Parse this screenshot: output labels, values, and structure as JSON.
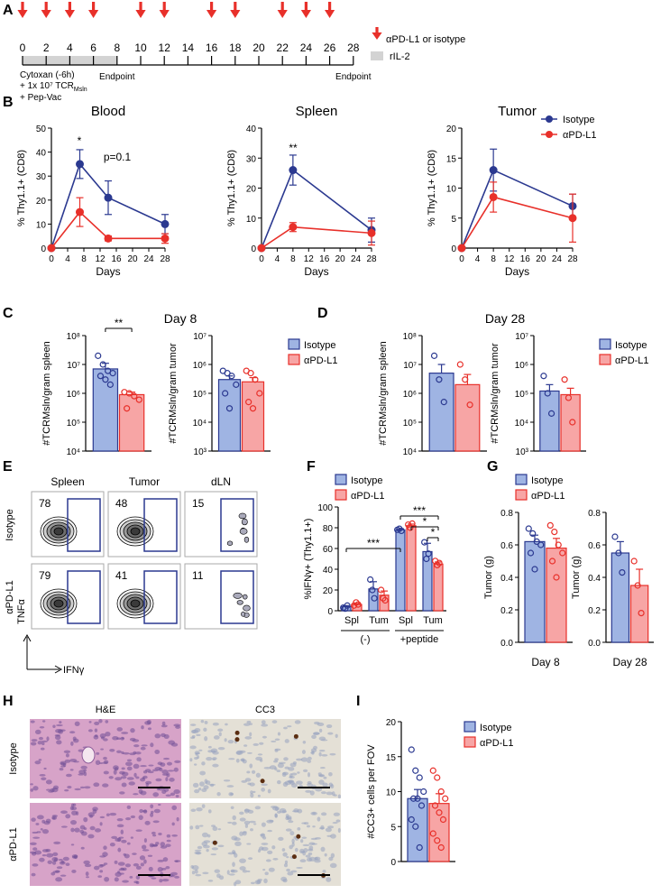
{
  "panel_labels": [
    "A",
    "B",
    "C",
    "D",
    "E",
    "F",
    "G",
    "H",
    "I"
  ],
  "timeline": {
    "ticks": [
      0,
      2,
      4,
      6,
      8,
      10,
      12,
      14,
      16,
      18,
      20,
      22,
      24,
      26,
      28
    ],
    "injections": [
      0,
      2,
      4,
      6,
      10,
      12,
      16,
      18,
      22,
      24,
      26
    ],
    "ril2": [
      0,
      8
    ],
    "endpoints": [
      8,
      28
    ],
    "endpoint_label": "Endpoint",
    "notes": [
      "Cytoxan (-6h)",
      "+ 1x 10⁷ TCR",
      "+ Pep-Vac"
    ],
    "note_subscript": "Msln",
    "legend": [
      "αPD-L1 or isotype",
      "rIL-2"
    ]
  },
  "panel_titles": [
    "Day 8",
    "Day 28"
  ],
  "chart_data": [
    {
      "type": "line",
      "title": "Blood",
      "x_label": "Days",
      "y_label": "% Thy1.1+ (CD8)",
      "x": [
        0,
        7,
        14,
        28
      ],
      "xlim": [
        0,
        28
      ],
      "xticks": [
        0,
        4,
        8,
        12,
        16,
        20,
        24,
        28
      ],
      "ylim": [
        0,
        50
      ],
      "yticks": [
        0,
        10,
        20,
        30,
        40,
        50
      ],
      "series": [
        {
          "name": "Isotype",
          "color": "#2b3990",
          "values": [
            0,
            35,
            21,
            10
          ],
          "errors": [
            0,
            6,
            7,
            4
          ]
        },
        {
          "name": "αPD-L1",
          "color": "#e8302a",
          "values": [
            0,
            15,
            4,
            4
          ],
          "errors": [
            0,
            6,
            1,
            2
          ]
        }
      ],
      "annotations": [
        "*",
        "p=0.1"
      ]
    },
    {
      "type": "line",
      "title": "Spleen",
      "x_label": "Days",
      "y_label": "% Thy1.1+ (CD8)",
      "x": [
        0,
        8,
        28
      ],
      "xlim": [
        0,
        28
      ],
      "xticks": [
        0,
        4,
        8,
        12,
        16,
        20,
        24,
        28
      ],
      "ylim": [
        0,
        40
      ],
      "yticks": [
        0,
        10,
        20,
        30,
        40
      ],
      "series": [
        {
          "name": "Isotype",
          "color": "#2b3990",
          "values": [
            0,
            26,
            6
          ],
          "errors": [
            0,
            5,
            4
          ]
        },
        {
          "name": "αPD-L1",
          "color": "#e8302a",
          "values": [
            0,
            7,
            5
          ],
          "errors": [
            0,
            1.5,
            4
          ]
        }
      ],
      "annotations": [
        "**"
      ]
    },
    {
      "type": "line",
      "title": "Tumor",
      "x_label": "Days",
      "y_label": "% Thy1.1+ (CD8)",
      "x": [
        0,
        8,
        28
      ],
      "xlim": [
        0,
        28
      ],
      "xticks": [
        0,
        4,
        8,
        12,
        16,
        20,
        24,
        28
      ],
      "ylim": [
        0,
        20
      ],
      "yticks": [
        0,
        5,
        10,
        15,
        20
      ],
      "series": [
        {
          "name": "Isotype",
          "color": "#2b3990",
          "values": [
            0,
            13,
            7
          ],
          "errors": [
            0,
            3.5,
            2
          ]
        },
        {
          "name": "αPD-L1",
          "color": "#e8302a",
          "values": [
            0,
            8.5,
            5
          ],
          "errors": [
            0,
            2.5,
            4
          ]
        }
      ],
      "legend": "upper right"
    },
    {
      "type": "bar",
      "log_scale": true,
      "y_label": "#TCRMsln/gram spleen",
      "ylim": [
        10000,
        100000000
      ],
      "yticks": [
        {
          "value": 10000,
          "label": "10⁴"
        },
        {
          "value": 100000,
          "label": "10⁵"
        },
        {
          "value": 1000000,
          "label": "10⁶"
        },
        {
          "value": 10000000,
          "label": "10⁷"
        },
        {
          "value": 100000000,
          "label": "10⁸"
        }
      ],
      "series": [
        {
          "name": "Isotype",
          "color": "#9fb4e3",
          "edge": "#2b3990",
          "values": [
            7000000
          ],
          "errors": [
            4000000
          ],
          "points": [
            [
              20000000,
              10000000,
              6000000,
              5000000,
              4000000,
              3000000,
              2000000
            ]
          ]
        },
        {
          "name": "αPD-L1",
          "color": "#f7a5a5",
          "edge": "#e8302a",
          "values": [
            900000
          ],
          "errors": [
            200000
          ],
          "points": [
            [
              1100000,
              1000000,
              800000,
              600000,
              300000
            ]
          ]
        }
      ],
      "annotations": [
        "**"
      ]
    },
    {
      "type": "bar",
      "log_scale": true,
      "y_label": "#TCRMsln/gram tumor",
      "ylim": [
        1000,
        10000000
      ],
      "yticks": [
        {
          "value": 1000,
          "label": "10³"
        },
        {
          "value": 10000,
          "label": "10⁴"
        },
        {
          "value": 100000,
          "label": "10⁵"
        },
        {
          "value": 1000000,
          "label": "10⁶"
        },
        {
          "value": 10000000,
          "label": "10⁷"
        }
      ],
      "series": [
        {
          "name": "Isotype",
          "color": "#9fb4e3",
          "edge": "#2b3990",
          "values": [
            300000
          ],
          "errors": [
            100000
          ],
          "points": [
            [
              600000,
              500000,
              400000,
              200000,
              100000,
              30000
            ]
          ]
        },
        {
          "name": "αPD-L1",
          "color": "#f7a5a5",
          "edge": "#e8302a",
          "values": [
            250000
          ],
          "errors": [
            100000
          ],
          "points": [
            [
              600000,
              500000,
              300000,
              100000,
              50000,
              30000
            ]
          ]
        }
      ],
      "legend": "right"
    },
    {
      "type": "bar",
      "log_scale": true,
      "y_label": "#TCRMsln/gram spleen",
      "ylim": [
        10000,
        100000000
      ],
      "yticks": [
        {
          "value": 10000,
          "label": "10⁴"
        },
        {
          "value": 100000,
          "label": "10⁵"
        },
        {
          "value": 1000000,
          "label": "10⁶"
        },
        {
          "value": 10000000,
          "label": "10⁷"
        },
        {
          "value": 100000000,
          "label": "10⁸"
        }
      ],
      "series": [
        {
          "name": "Isotype",
          "color": "#9fb4e3",
          "edge": "#2b3990",
          "values": [
            5000000
          ],
          "errors": [
            5000000
          ],
          "points": [
            [
              20000000,
              3000000,
              500000
            ]
          ]
        },
        {
          "name": "αPD-L1",
          "color": "#f7a5a5",
          "edge": "#e8302a",
          "values": [
            2000000
          ],
          "errors": [
            2500000
          ],
          "points": [
            [
              10000000,
              3000000,
              400000
            ]
          ]
        }
      ]
    },
    {
      "type": "bar",
      "log_scale": true,
      "y_label": "#TCRMsln/gram tumor",
      "ylim": [
        1000,
        10000000
      ],
      "yticks": [
        {
          "value": 1000,
          "label": "10³"
        },
        {
          "value": 10000,
          "label": "10⁴"
        },
        {
          "value": 100000,
          "label": "10⁵"
        },
        {
          "value": 1000000,
          "label": "10⁶"
        },
        {
          "value": 10000000,
          "label": "10⁷"
        }
      ],
      "series": [
        {
          "name": "Isotype",
          "color": "#9fb4e3",
          "edge": "#2b3990",
          "values": [
            120000
          ],
          "errors": [
            80000
          ],
          "points": [
            [
              400000,
              100000,
              20000
            ]
          ]
        },
        {
          "name": "αPD-L1",
          "color": "#f7a5a5",
          "edge": "#e8302a",
          "values": [
            90000
          ],
          "errors": [
            60000
          ],
          "points": [
            [
              300000,
              70000,
              10000
            ]
          ]
        }
      ],
      "legend": "right"
    },
    {
      "type": "bar",
      "y_label": "%IFNγ+ (Thy1.1+)",
      "categories": [
        "Spl",
        "Tum",
        "Spl",
        "Tum"
      ],
      "group_labels": [
        "(-)",
        "+peptide"
      ],
      "ylim": [
        0,
        100
      ],
      "yticks": [
        0,
        20,
        40,
        60,
        80,
        100
      ],
      "series": [
        {
          "name": "Isotype",
          "color": "#9fb4e3",
          "edge": "#2b3990",
          "values": [
            4,
            21,
            78,
            57
          ],
          "errors": [
            1,
            7,
            1,
            8
          ],
          "points": [
            [
              3,
              2,
              5
            ],
            [
              30,
              20,
              12
            ],
            [
              78,
              79,
              77
            ],
            [
              66,
              50,
              55
            ]
          ]
        },
        {
          "name": "αPD-L1",
          "color": "#f7a5a5",
          "edge": "#e8302a",
          "values": [
            6,
            15,
            82,
            45
          ],
          "errors": [
            1,
            4,
            1.5,
            2
          ],
          "points": [
            [
              5,
              8,
              6
            ],
            [
              20,
              12,
              10
            ],
            [
              83,
              80,
              84
            ],
            [
              48,
              44,
              46
            ]
          ]
        }
      ],
      "annotations": [
        "***",
        "*",
        "*",
        "***"
      ],
      "legend": "upper left"
    },
    {
      "type": "bar",
      "y_label": "Tumor (g)",
      "x_label": "Day 8",
      "ylim": [
        0,
        0.8
      ],
      "yticks": [
        {
          "value": 0,
          "label": "0.0"
        },
        0.2,
        0.4,
        0.6,
        0.8
      ],
      "series": [
        {
          "name": "Isotype",
          "color": "#9fb4e3",
          "edge": "#2b3990",
          "values": [
            0.62
          ],
          "errors": [
            0.04
          ],
          "points": [
            [
              0.7,
              0.67,
              0.62,
              0.6,
              0.55,
              0.45
            ]
          ]
        },
        {
          "name": "αPD-L1",
          "color": "#f7a5a5",
          "edge": "#e8302a",
          "values": [
            0.58
          ],
          "errors": [
            0.06
          ],
          "points": [
            [
              0.72,
              0.68,
              0.6,
              0.55,
              0.5,
              0.4
            ]
          ]
        }
      ],
      "legend": "upper left"
    },
    {
      "type": "bar",
      "y_label": "Tumor (g)",
      "x_label": "Day 28",
      "ylim": [
        0,
        0.8
      ],
      "yticks": [
        {
          "value": 0,
          "label": "0.0"
        },
        0.2,
        0.4,
        0.6,
        0.8
      ],
      "series": [
        {
          "name": "Isotype",
          "color": "#9fb4e3",
          "edge": "#2b3990",
          "values": [
            0.55
          ],
          "errors": [
            0.07
          ],
          "points": [
            [
              0.65,
              0.55,
              0.43
            ]
          ]
        },
        {
          "name": "αPD-L1",
          "color": "#f7a5a5",
          "edge": "#e8302a",
          "values": [
            0.35
          ],
          "errors": [
            0.1
          ],
          "points": [
            [
              0.5,
              0.35,
              0.18
            ]
          ]
        }
      ]
    },
    {
      "type": "bar",
      "y_label": "#CC3+ cells per FOV",
      "ylim": [
        0,
        20
      ],
      "yticks": [
        0,
        5,
        10,
        15,
        20
      ],
      "series": [
        {
          "name": "Isotype",
          "color": "#9fb4e3",
          "edge": "#2b3990",
          "values": [
            9
          ],
          "errors": [
            1.3
          ],
          "points": [
            [
              16,
              13,
              12,
              10,
              9,
              9,
              8,
              6,
              5,
              2
            ]
          ]
        },
        {
          "name": "αPD-L1",
          "color": "#f7a5a5",
          "edge": "#e8302a",
          "values": [
            8.3
          ],
          "errors": [
            1.4
          ],
          "points": [
            [
              13,
              12,
              10,
              9,
              8,
              7,
              6,
              4,
              3,
              2
            ]
          ]
        }
      ],
      "legend": "right"
    }
  ],
  "flow": {
    "columns": [
      "Spleen",
      "Tumor",
      "dLN"
    ],
    "rows": [
      "Isotype",
      "αPD-L1"
    ],
    "values": [
      [
        78,
        48,
        15
      ],
      [
        79,
        41,
        11
      ]
    ],
    "y_axis": "TNFα",
    "x_axis": "IFNγ"
  },
  "histology": {
    "columns": [
      "H&E",
      "CC3"
    ],
    "rows": [
      "Isotype",
      "αPD-L1"
    ]
  }
}
